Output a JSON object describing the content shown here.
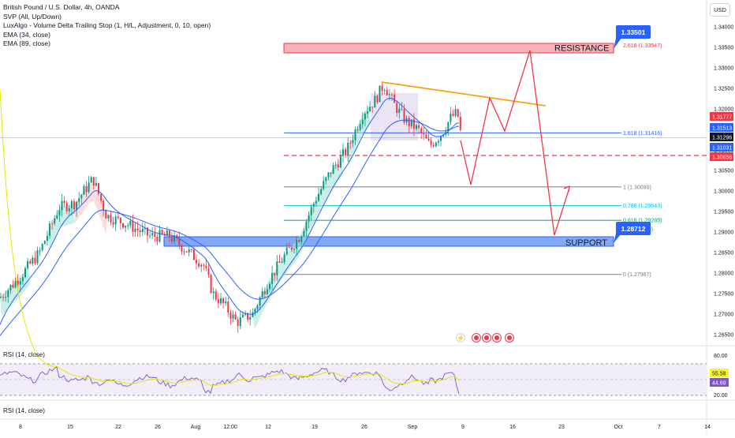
{
  "legend": {
    "title": "British Pound / U.S. Dollar, 4h, OANDA",
    "ind1": "SVP (All, Up/Down)",
    "ind2": "LuxAlgo - Volume Delta Trailing Stop (1, H/L, Adjustment, 0, 10, open)",
    "ind3": "EMA (34, close)",
    "ind4": "EMA (89, close)"
  },
  "currency_button": "USD",
  "price_axis": [
    "1.34000",
    "1.33500",
    "1.33000",
    "1.32500",
    "1.32000",
    "1.31500",
    "1.31000",
    "1.30500",
    "1.30000",
    "1.29500",
    "1.29000",
    "1.28500",
    "1.28000",
    "1.27500",
    "1.27000",
    "1.26500"
  ],
  "price_tags": [
    {
      "value": "1.31777",
      "color": "#f23645"
    },
    {
      "value": "1.31513",
      "color": "#2962ff"
    },
    {
      "value": "1.31296",
      "color": "#131722"
    },
    {
      "value": "1.31031",
      "color": "#2962ff"
    },
    {
      "value": "1.30856",
      "color": "#f23645"
    }
  ],
  "time_axis": [
    "8",
    "15",
    "22",
    "26",
    "Aug",
    "12:00",
    "12",
    "19",
    "26",
    "Sep",
    "9",
    "16",
    "23",
    "Oct",
    "7",
    "14"
  ],
  "zones": {
    "resistance": {
      "label": "RESISTANCE",
      "price_tag": "1.33501",
      "fib_label": "2.618 (1.33547)"
    },
    "support": {
      "label": "SUPPORT",
      "price_tag": "1.28712"
    }
  },
  "fib_levels": [
    {
      "label": "1.618 (1.31416)",
      "price": 1.31416,
      "color": "#2962ff"
    },
    {
      "label": "1 (1.30099)",
      "price": 1.30099,
      "color": "#787b86"
    },
    {
      "label": "0.786 (1.29643)",
      "price": 1.29643,
      "color": "#00bcd4"
    },
    {
      "label": "0.618 (1.29285)",
      "price": 1.29285,
      "color": "#089981"
    },
    {
      "label": "0 (1.27967)",
      "price": 1.27967,
      "color": "#787b86"
    }
  ],
  "fib_partial": "3)",
  "rsi": {
    "label1": "RSI (14, close)",
    "label2": "RSI (14, close)",
    "axis": [
      "80.00",
      "20.00"
    ],
    "tags": [
      {
        "value": "55.58",
        "color": "#f7f525"
      },
      {
        "value": "44.69",
        "color": "#7e57c2"
      }
    ]
  },
  "colors": {
    "up": "#089981",
    "down": "#f23645",
    "ema34": "#2962ff",
    "ema89": "#2962ff",
    "resistance_fill": "#f7b2b8",
    "support_fill": "#5b8cf0",
    "projection": "#f23645",
    "trendline": "#ff9800"
  }
}
